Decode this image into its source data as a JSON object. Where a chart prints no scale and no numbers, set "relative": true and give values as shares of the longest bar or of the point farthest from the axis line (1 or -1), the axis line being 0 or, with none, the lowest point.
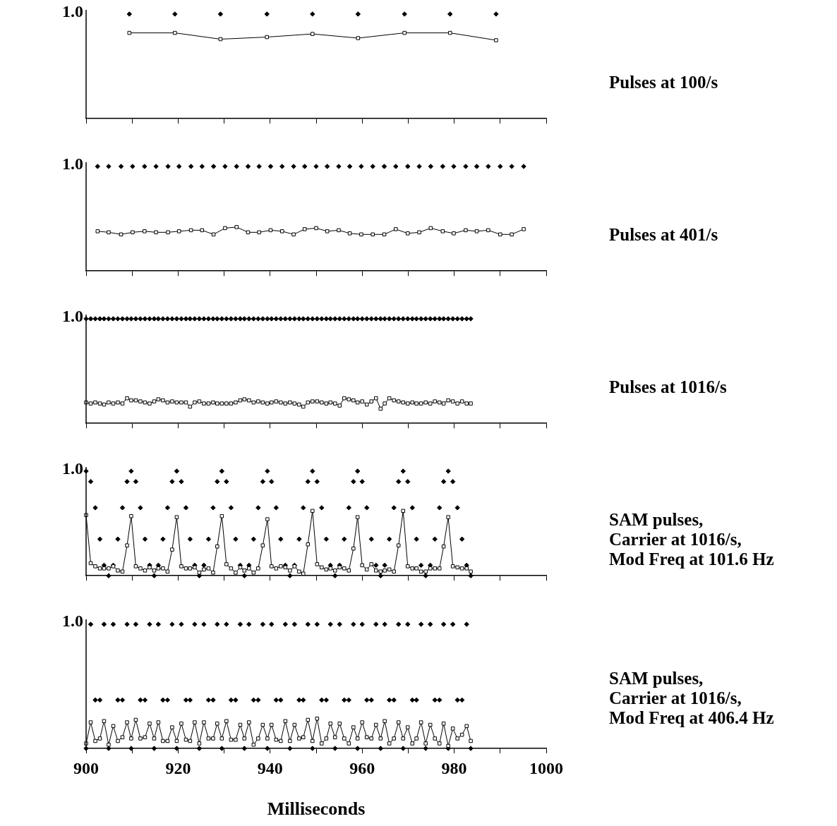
{
  "chart_data": [
    {
      "type": "line",
      "annotations": [
        "1.0",
        "Pulses at 100/s"
      ],
      "relative": true,
      "xlim": [
        900,
        1000
      ],
      "xticks": [
        900,
        {
          "value": 910,
          "label": null
        },
        920,
        {
          "value": 930,
          "label": null
        },
        940,
        {
          "value": 950,
          "label": null
        },
        960,
        {
          "value": 970,
          "label": null
        },
        980,
        {
          "value": 990,
          "label": null
        },
        1000
      ],
      "tick_labels": false,
      "legend": false,
      "grid": false,
      "x": [
        909.4,
        919.3,
        929.2,
        939.3,
        949.2,
        959.1,
        969.2,
        979.1,
        989.1
      ],
      "series": [
        {
          "type": "scatter",
          "marker": "diamond",
          "color": "#000000",
          "values": [
            1,
            1,
            1,
            1,
            1,
            1,
            1,
            1,
            1
          ]
        },
        {
          "marker": "square",
          "color": "#000000",
          "values": [
            0.82,
            0.82,
            0.76,
            0.78,
            0.81,
            0.77,
            0.82,
            0.82,
            0.75
          ]
        }
      ]
    },
    {
      "type": "line",
      "annotations": [
        "1.0",
        "Pulses at 401/s"
      ],
      "relative": true,
      "xlim": [
        900,
        1000
      ],
      "xticks": [
        900,
        {
          "value": 910,
          "label": null
        },
        920,
        {
          "value": 930,
          "label": null
        },
        940,
        {
          "value": 950,
          "label": null
        },
        960,
        {
          "value": 970,
          "label": null
        },
        980,
        {
          "value": 990,
          "label": null
        },
        1000
      ],
      "tick_labels": false,
      "legend": false,
      "grid": false,
      "x": [
        902.5,
        904.9,
        907.6,
        910.1,
        912.7,
        915.2,
        917.8,
        920.2,
        922.8,
        925.2,
        927.7,
        930.2,
        932.7,
        935.2,
        937.6,
        940.1,
        942.6,
        945.1,
        947.5,
        950.0,
        952.4,
        954.9,
        957.3,
        959.8,
        962.3,
        964.8,
        967.3,
        969.9,
        972.4,
        974.9,
        977.5,
        979.9,
        982.5,
        984.9,
        987.4,
        990.0,
        992.5,
        995.1
      ],
      "series": [
        {
          "type": "scatter",
          "marker": "diamond",
          "color": "#000000",
          "values": [
            1,
            1,
            1,
            1,
            1,
            1,
            1,
            1,
            1,
            1,
            1,
            1,
            1,
            1,
            1,
            1,
            1,
            1,
            1,
            1,
            1,
            1,
            1,
            1,
            1,
            1,
            1,
            1,
            1,
            1,
            1,
            1,
            1,
            1,
            1,
            1,
            1,
            1
          ]
        },
        {
          "marker": "square",
          "color": "#000000",
          "values": [
            0.38,
            0.37,
            0.35,
            0.37,
            0.38,
            0.37,
            0.37,
            0.38,
            0.39,
            0.39,
            0.35,
            0.41,
            0.42,
            0.37,
            0.37,
            0.39,
            0.38,
            0.35,
            0.4,
            0.41,
            0.38,
            0.39,
            0.36,
            0.35,
            0.35,
            0.35,
            0.4,
            0.36,
            0.37,
            0.41,
            0.38,
            0.36,
            0.39,
            0.38,
            0.39,
            0.35,
            0.35,
            0.4
          ]
        }
      ]
    },
    {
      "type": "line",
      "annotations": [
        "1.0",
        "Pulses at 1016/s"
      ],
      "relative": true,
      "xlim": [
        900,
        1000
      ],
      "xticks": [
        900,
        {
          "value": 910,
          "label": null
        },
        920,
        {
          "value": 930,
          "label": null
        },
        940,
        {
          "value": 950,
          "label": null
        },
        960,
        {
          "value": 970,
          "label": null
        },
        980,
        {
          "value": 990,
          "label": null
        },
        1000
      ],
      "tick_labels": false,
      "legend": false,
      "grid": false,
      "x": [
        900.0,
        901.0,
        902.0,
        903.0,
        903.9,
        904.9,
        905.9,
        906.9,
        907.9,
        908.9,
        909.8,
        910.8,
        911.8,
        912.8,
        913.8,
        914.8,
        915.7,
        916.7,
        917.7,
        918.7,
        919.7,
        920.7,
        921.7,
        922.6,
        923.6,
        924.6,
        925.6,
        926.6,
        927.6,
        928.5,
        929.5,
        930.5,
        931.5,
        932.5,
        933.5,
        934.4,
        935.4,
        936.4,
        937.4,
        938.4,
        939.4,
        940.3,
        941.3,
        942.3,
        943.3,
        944.3,
        945.3,
        946.3,
        947.2,
        948.2,
        949.2,
        950.2,
        951.2,
        952.2,
        953.1,
        954.1,
        955.1,
        956.1,
        957.1,
        958.1,
        959.0,
        960.0,
        961.0,
        962.0,
        963.0,
        964.0,
        964.9,
        965.9,
        966.9,
        967.9,
        968.9,
        969.9,
        970.9,
        971.8,
        972.8,
        973.8,
        974.8,
        975.8,
        976.8,
        977.7,
        978.7,
        979.7,
        980.7,
        981.7,
        982.7,
        983.6
      ],
      "series": [
        {
          "type": "scatter",
          "marker": "diamond",
          "color": "#000000",
          "values": [
            1,
            1,
            1,
            1,
            1,
            1,
            1,
            1,
            1,
            1,
            1,
            1,
            1,
            1,
            1,
            1,
            1,
            1,
            1,
            1,
            1,
            1,
            1,
            1,
            1,
            1,
            1,
            1,
            1,
            1,
            1,
            1,
            1,
            1,
            1,
            1,
            1,
            1,
            1,
            1,
            1,
            1,
            1,
            1,
            1,
            1,
            1,
            1,
            1,
            1,
            1,
            1,
            1,
            1,
            1,
            1,
            1,
            1,
            1,
            1,
            1,
            1,
            1,
            1,
            1,
            1,
            1,
            1,
            1,
            1,
            1,
            1,
            1,
            1,
            1,
            1,
            1,
            1,
            1,
            1,
            1,
            1,
            1,
            1,
            1,
            1
          ]
        },
        {
          "marker": "square",
          "color": "#000000",
          "values": [
            0.2,
            0.19,
            0.2,
            0.19,
            0.18,
            0.2,
            0.19,
            0.2,
            0.19,
            0.24,
            0.22,
            0.22,
            0.21,
            0.2,
            0.19,
            0.21,
            0.23,
            0.22,
            0.2,
            0.21,
            0.2,
            0.2,
            0.2,
            0.16,
            0.2,
            0.21,
            0.19,
            0.19,
            0.2,
            0.19,
            0.19,
            0.19,
            0.19,
            0.2,
            0.22,
            0.23,
            0.22,
            0.2,
            0.21,
            0.2,
            0.19,
            0.2,
            0.21,
            0.2,
            0.19,
            0.2,
            0.19,
            0.18,
            0.16,
            0.2,
            0.21,
            0.21,
            0.2,
            0.19,
            0.2,
            0.19,
            0.17,
            0.24,
            0.23,
            0.22,
            0.2,
            0.21,
            0.18,
            0.21,
            0.24,
            0.14,
            0.19,
            0.24,
            0.22,
            0.21,
            0.2,
            0.19,
            0.2,
            0.19,
            0.19,
            0.2,
            0.19,
            0.21,
            0.2,
            0.19,
            0.22,
            0.21,
            0.19,
            0.21,
            0.19,
            0.19
          ]
        }
      ]
    },
    {
      "type": "line",
      "annotations": [
        "1.0",
        "SAM pulses,\nCarrier at 1016/s,\nMod Freq at 101.6 Hz"
      ],
      "relative": true,
      "xlim": [
        900,
        1000
      ],
      "xticks": [
        900,
        {
          "value": 910,
          "label": null
        },
        920,
        {
          "value": 930,
          "label": null
        },
        940,
        {
          "value": 950,
          "label": null
        },
        960,
        {
          "value": 970,
          "label": null
        },
        980,
        {
          "value": 990,
          "label": null
        },
        1000
      ],
      "tick_labels": false,
      "legend": false,
      "grid": false,
      "x": [
        900.0,
        901.0,
        902.0,
        903.0,
        903.9,
        904.9,
        905.9,
        906.9,
        907.9,
        908.9,
        909.8,
        910.8,
        911.8,
        912.8,
        913.8,
        914.8,
        915.7,
        916.7,
        917.7,
        918.7,
        919.7,
        920.7,
        921.7,
        922.6,
        923.6,
        924.6,
        925.6,
        926.6,
        927.6,
        928.5,
        929.5,
        930.5,
        931.5,
        932.5,
        933.5,
        934.4,
        935.4,
        936.4,
        937.4,
        938.4,
        939.4,
        940.3,
        941.3,
        942.3,
        943.3,
        944.3,
        945.3,
        946.3,
        947.2,
        948.2,
        949.2,
        950.2,
        951.2,
        952.2,
        953.1,
        954.1,
        955.1,
        956.1,
        957.1,
        958.1,
        959.0,
        960.0,
        961.0,
        962.0,
        963.0,
        964.0,
        964.9,
        965.9,
        966.9,
        967.9,
        968.9,
        969.9,
        970.9,
        971.8,
        972.8,
        973.8,
        974.8,
        975.8,
        976.8,
        977.7,
        978.7,
        979.7,
        980.7,
        981.7,
        982.7,
        983.6
      ],
      "series": [
        {
          "type": "scatter",
          "marker": "diamond",
          "color": "#000000",
          "values": [
            1,
            0.9,
            0.65,
            0.35,
            0.1,
            0,
            0.1,
            0.35,
            0.65,
            0.9,
            1,
            0.9,
            0.65,
            0.35,
            0.1,
            0,
            0.1,
            0.35,
            0.65,
            0.9,
            1,
            0.9,
            0.65,
            0.35,
            0.1,
            0,
            0.1,
            0.35,
            0.65,
            0.9,
            1,
            0.9,
            0.65,
            0.35,
            0.1,
            0,
            0.1,
            0.35,
            0.65,
            0.9,
            1,
            0.9,
            0.65,
            0.35,
            0.1,
            0,
            0.1,
            0.35,
            0.65,
            0.9,
            1,
            0.9,
            0.65,
            0.35,
            0.1,
            0,
            0.1,
            0.35,
            0.65,
            0.9,
            1,
            0.9,
            0.65,
            0.35,
            0.1,
            0,
            0.1,
            0.35,
            0.65,
            0.9,
            1,
            0.9,
            0.65,
            0.35,
            0.1,
            0,
            0.1,
            0.35,
            0.65,
            0.9,
            1,
            0.9,
            0.65,
            0.35,
            0.1,
            0
          ]
        },
        {
          "marker": "square",
          "color": "#000000",
          "values": [
            0.58,
            0.12,
            0.09,
            0.07,
            0.07,
            0.07,
            0.09,
            0.05,
            0.04,
            0.29,
            0.57,
            0.09,
            0.07,
            0.05,
            0.08,
            0.05,
            0.07,
            0.07,
            0.04,
            0.25,
            0.56,
            0.09,
            0.07,
            0.07,
            0.08,
            0.03,
            0.06,
            0.07,
            0.03,
            0.28,
            0.57,
            0.11,
            0.07,
            0.03,
            0.08,
            0.05,
            0.07,
            0.03,
            0.07,
            0.29,
            0.54,
            0.09,
            0.07,
            0.09,
            0.08,
            0.05,
            0.09,
            0.04,
            0.02,
            0.3,
            0.62,
            0.11,
            0.08,
            0.06,
            0.07,
            0.05,
            0.08,
            0.07,
            0.05,
            0.26,
            0.56,
            0.1,
            0.06,
            0.11,
            0.05,
            0.04,
            0.05,
            0.06,
            0.04,
            0.29,
            0.62,
            0.09,
            0.07,
            0.07,
            0.04,
            0.04,
            0.07,
            0.07,
            0.07,
            0.28,
            0.56,
            0.09,
            0.08,
            0.07,
            0.07,
            0.04
          ]
        }
      ]
    },
    {
      "type": "line",
      "xlabel": "Milliseconds",
      "annotations": [
        "1.0",
        "SAM pulses,\nCarrier at 1016/s,\nMod Freq at 406.4 Hz"
      ],
      "relative": true,
      "tick_labels": "x",
      "xlim": [
        900,
        1000
      ],
      "xticks": [
        900,
        {
          "value": 910,
          "label": null
        },
        920,
        {
          "value": 930,
          "label": null
        },
        940,
        {
          "value": 950,
          "label": null
        },
        960,
        {
          "value": 970,
          "label": null
        },
        980,
        {
          "value": 990,
          "label": null
        },
        1000
      ],
      "legend": false,
      "grid": false,
      "x": [
        900.0,
        901.0,
        902.0,
        903.0,
        903.9,
        904.9,
        905.9,
        906.9,
        907.9,
        908.9,
        909.8,
        910.8,
        911.8,
        912.8,
        913.8,
        914.8,
        915.7,
        916.7,
        917.7,
        918.7,
        919.7,
        920.7,
        921.7,
        922.6,
        923.6,
        924.6,
        925.6,
        926.6,
        927.6,
        928.5,
        929.5,
        930.5,
        931.5,
        932.5,
        933.5,
        934.4,
        935.4,
        936.4,
        937.4,
        938.4,
        939.4,
        940.3,
        941.3,
        942.3,
        943.3,
        944.3,
        945.3,
        946.3,
        947.2,
        948.2,
        949.2,
        950.2,
        951.2,
        952.2,
        953.1,
        954.1,
        955.1,
        956.1,
        957.1,
        958.1,
        959.0,
        960.0,
        961.0,
        962.0,
        963.0,
        964.0,
        964.9,
        965.9,
        966.9,
        967.9,
        968.9,
        969.9,
        970.9,
        971.8,
        972.8,
        973.8,
        974.8,
        975.8,
        976.8,
        977.7,
        978.7,
        979.7,
        980.7,
        981.7,
        982.7,
        983.6
      ],
      "series": [
        {
          "type": "scatter",
          "marker": "diamond",
          "color": "#000000",
          "values": [
            0,
            1,
            0.39,
            0.39,
            1,
            0,
            1,
            0.39,
            0.39,
            1,
            0,
            1,
            0.39,
            0.39,
            1,
            0,
            1,
            0.39,
            0.39,
            1,
            0,
            1,
            0.39,
            0.39,
            1,
            0,
            1,
            0.39,
            0.39,
            1,
            0,
            1,
            0.39,
            0.39,
            1,
            0,
            1,
            0.39,
            0.39,
            1,
            0,
            1,
            0.39,
            0.39,
            1,
            0,
            1,
            0.39,
            0.39,
            1,
            0,
            1,
            0.39,
            0.39,
            1,
            0,
            1,
            0.39,
            0.39,
            1,
            0,
            1,
            0.39,
            0.39,
            1,
            0,
            1,
            0.39,
            0.39,
            1,
            0,
            1,
            0.39,
            0.39,
            1,
            0,
            1,
            0.39,
            0.39,
            1,
            0,
            1,
            0.39,
            0.39,
            1,
            0
          ]
        },
        {
          "marker": "square",
          "color": "#000000",
          "values": [
            0.04,
            0.21,
            0.06,
            0.08,
            0.22,
            0.03,
            0.18,
            0.06,
            0.09,
            0.21,
            0.08,
            0.23,
            0.08,
            0.09,
            0.2,
            0.08,
            0.21,
            0.06,
            0.06,
            0.17,
            0.06,
            0.2,
            0.07,
            0.06,
            0.21,
            0.04,
            0.21,
            0.08,
            0.08,
            0.2,
            0.08,
            0.22,
            0.07,
            0.07,
            0.19,
            0.08,
            0.21,
            0.03,
            0.08,
            0.19,
            0.08,
            0.19,
            0.07,
            0.06,
            0.22,
            0.06,
            0.19,
            0.08,
            0.09,
            0.23,
            0.06,
            0.24,
            0.04,
            0.08,
            0.2,
            0.09,
            0.2,
            0.08,
            0.04,
            0.17,
            0.08,
            0.21,
            0.09,
            0.08,
            0.19,
            0.08,
            0.22,
            0.04,
            0.08,
            0.21,
            0.08,
            0.17,
            0.04,
            0.08,
            0.21,
            0.04,
            0.19,
            0.08,
            0.04,
            0.2,
            0.02,
            0.16,
            0.08,
            0.11,
            0.18,
            0.06
          ]
        }
      ]
    }
  ]
}
